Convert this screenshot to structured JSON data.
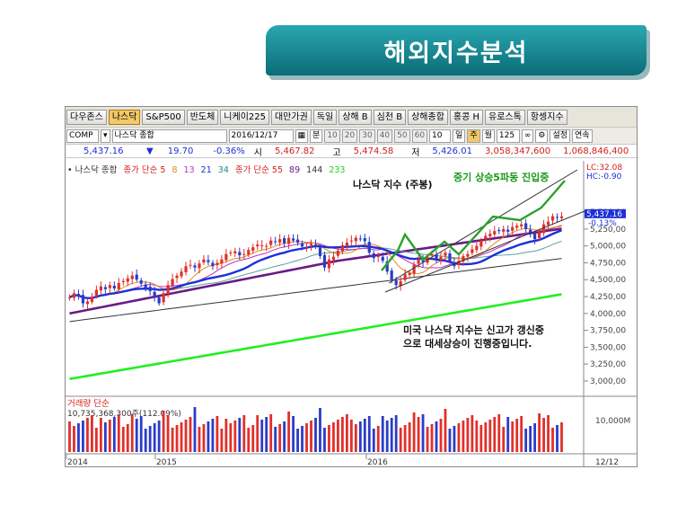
{
  "slide_title": "해외지수분석",
  "tabs": [
    "다우존스",
    "나스닥",
    "S&P500",
    "반도체",
    "니케이225",
    "대만가권",
    "독일",
    "상해 B",
    "심천 B",
    "상해종합",
    "홍콩 H",
    "유로스톡",
    "항셍지수"
  ],
  "active_tab": 1,
  "toolbar": {
    "code": "COMP",
    "name": "나스닥 종합",
    "date": "2016/12/17",
    "period_label": "분",
    "periods": [
      "10",
      "20",
      "30",
      "40",
      "50",
      "60"
    ],
    "period_count": "10",
    "day": "일",
    "week": "주",
    "month": "월",
    "bars": "125",
    "settings": "설정",
    "link": "연속"
  },
  "quote": {
    "price": "5,437.16",
    "arrow": "▼",
    "change": "19.70",
    "change_pct": "-0.36%",
    "open_label": "시",
    "open": "5,467.82",
    "high_label": "고",
    "high": "5,474.58",
    "low_label": "저",
    "low": "5,426.01",
    "volume": "3,058,347,600",
    "amount": "1,068,846,400"
  },
  "legend": {
    "prefix": "• 나스닥 종합",
    "ma_short_label": "종가 단순 5",
    "ma_short_periods": [
      "8",
      "13",
      "21",
      "34"
    ],
    "ma_long_label": "종가 단순 55",
    "ma_long_periods": [
      "89",
      "144",
      "233"
    ]
  },
  "volume_panel": {
    "title": "거래량 단순",
    "info": "10,735,368,300주(112.09%)",
    "axis_label": "10,000M"
  },
  "annotations": {
    "chart_title": "나스닥 지수 (주봉)",
    "wave": "중기 상승5파동 진입중",
    "comment_line1": "미국 나스닥 지수는 신고가 갱신중",
    "comment_line2": "으로 대세상승이 진행중입니다."
  },
  "right_axis": {
    "lc": "LC:32.08",
    "hc": "HC:-0.90",
    "price_tag": "5,437.16",
    "pct_tag": "-0.13%"
  },
  "x_axis": {
    "labels": [
      "2014",
      "2015",
      "2016"
    ],
    "end_label": "12/12"
  },
  "colors": {
    "banner": "#0b6c78",
    "up_candle": "#e0302a",
    "down_candle": "#2a3cc8",
    "ma_blue": "#1d2fd6",
    "ma_purple": "#6a1a86",
    "ma_dark": "#333333",
    "ma_green": "#22ee22",
    "wave_green": "#2aa02a"
  },
  "chart_data": {
    "type": "candlestick",
    "title": "나스닥 지수 (주봉)",
    "ylim": [
      2800,
      6100
    ],
    "y_ticks": [
      3000,
      3250,
      3500,
      3750,
      4000,
      4250,
      4500,
      4750,
      5000,
      5250,
      5500
    ],
    "y_tick_labels": [
      "3,000,00",
      "3,250,00",
      "3,500,00",
      "3,750,00",
      "4,000,00",
      "4,250,00",
      "4,500,00",
      "4,750,00",
      "5,000,00",
      "5,250,00",
      "5,500,00"
    ],
    "closes": [
      4240,
      4300,
      4260,
      4150,
      4180,
      4250,
      4350,
      4400,
      4360,
      4420,
      4370,
      4450,
      4480,
      4520,
      4560,
      4500,
      4440,
      4380,
      4330,
      4250,
      4150,
      4300,
      4420,
      4510,
      4560,
      4620,
      4700,
      4720,
      4680,
      4740,
      4800,
      4760,
      4700,
      4750,
      4800,
      4880,
      4900,
      4920,
      4860,
      4880,
      4940,
      4980,
      5020,
      5010,
      5000,
      5080,
      5060,
      5100,
      5040,
      5120,
      5080,
      5050,
      4990,
      4990,
      5030,
      4990,
      4850,
      4680,
      4800,
      4840,
      4930,
      5010,
      5050,
      5080,
      5120,
      5100,
      5070,
      4900,
      4820,
      4850,
      4780,
      4620,
      4500,
      4420,
      4480,
      4580,
      4600,
      4720,
      4800,
      4760,
      4840,
      4880,
      4800,
      4840,
      4900,
      4770,
      4700,
      4780,
      4850,
      4880,
      4950,
      5000,
      5080,
      5150,
      5180,
      5220,
      5220,
      5250,
      5210,
      5280,
      5300,
      5320,
      5250,
      5190,
      5100,
      5200,
      5320,
      5360,
      5440,
      5420,
      5437.16
    ]
  }
}
